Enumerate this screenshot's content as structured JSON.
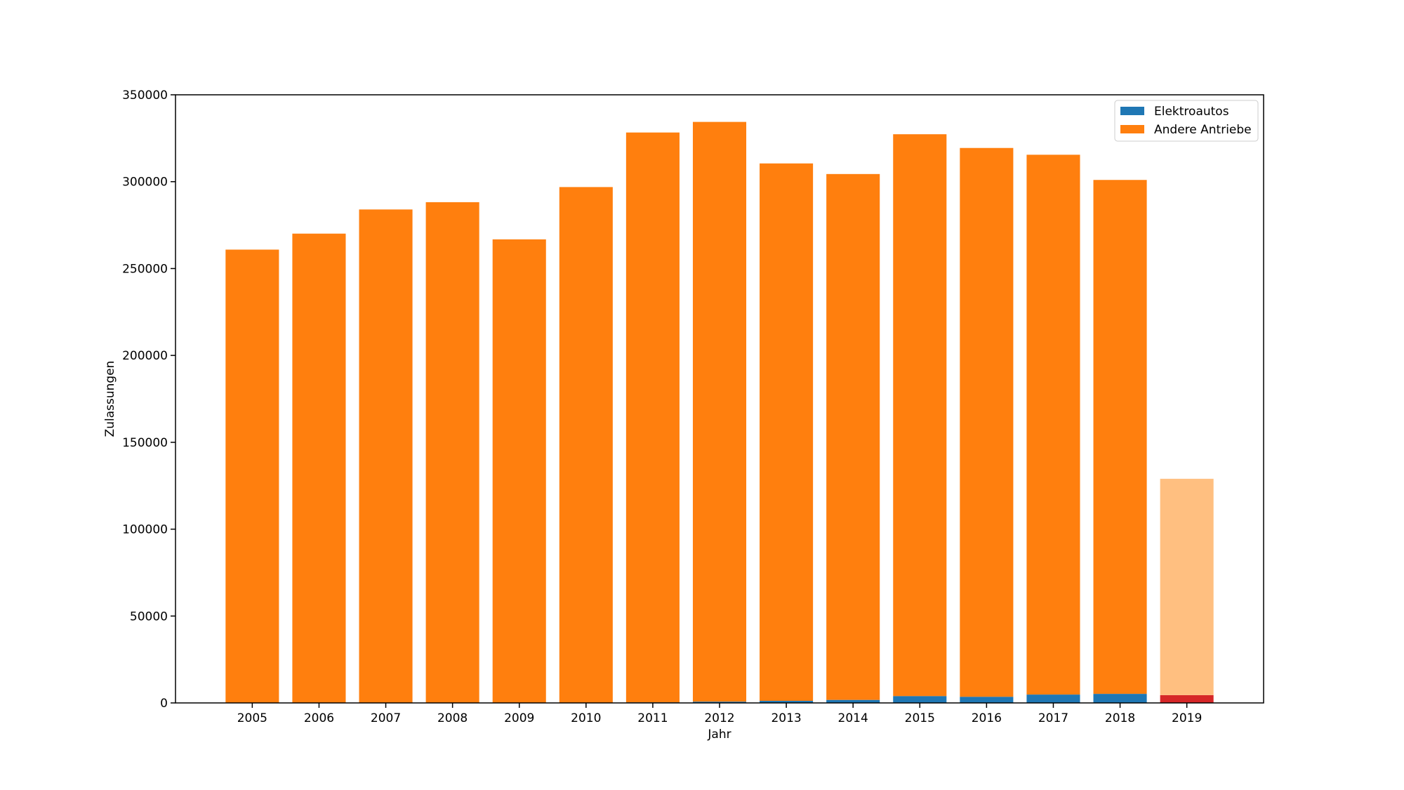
{
  "chart_data": {
    "type": "bar",
    "stacked": true,
    "categories": [
      "2005",
      "2006",
      "2007",
      "2008",
      "2009",
      "2010",
      "2011",
      "2012",
      "2013",
      "2014",
      "2015",
      "2016",
      "2017",
      "2018",
      "2019"
    ],
    "series": [
      {
        "name": "Elektroautos",
        "color": "#1f77b4",
        "values": [
          0,
          0,
          0,
          0,
          0,
          0,
          300,
          700,
          1200,
          1700,
          3900,
          3500,
          4800,
          5200,
          null
        ]
      },
      {
        "name": "Andere Antriebe",
        "color": "#ff7f0e",
        "values": [
          260900,
          270100,
          284000,
          288200,
          266800,
          296900,
          328000,
          333700,
          309300,
          302700,
          323400,
          315900,
          310700,
          295800,
          null
        ]
      }
    ],
    "highlight": {
      "category": "2019",
      "bottom": {
        "value": 4500,
        "color": "#d62728"
      },
      "top": {
        "value": 124500,
        "color": "#ffbf80"
      }
    },
    "xlabel": "Jahr",
    "ylabel": "Zulassungen",
    "ylim": [
      0,
      350000
    ],
    "yticks": [
      0,
      50000,
      100000,
      150000,
      200000,
      250000,
      300000,
      350000
    ],
    "grid": false,
    "legend_position": "top-right"
  }
}
